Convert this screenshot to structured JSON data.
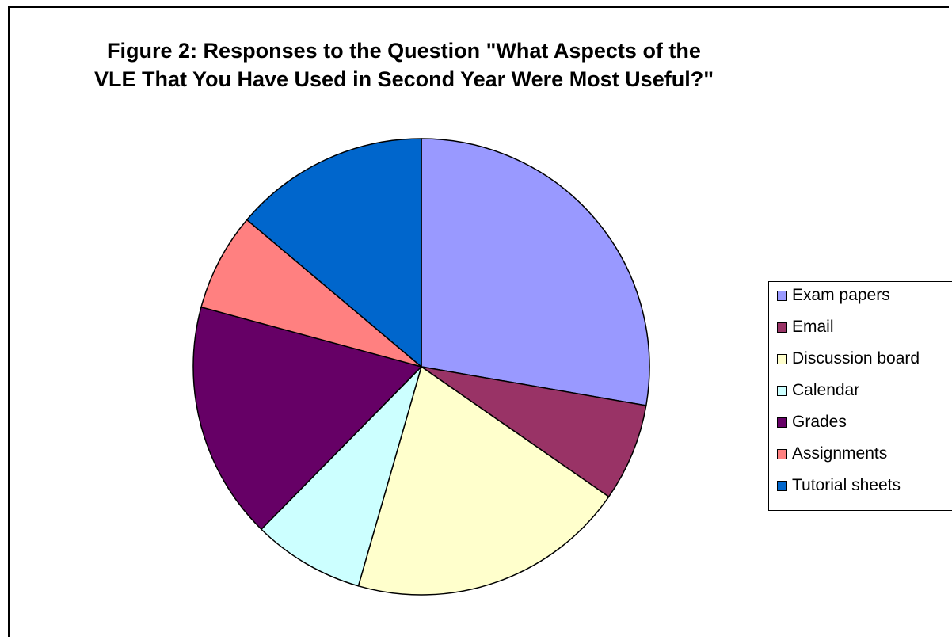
{
  "chart_data": {
    "type": "pie",
    "title_line1": "Figure 2:  Responses to the Question \"What Aspects of the",
    "title_line2": "VLE That You Have Used in Second Year Were Most Useful?\"",
    "categories": [
      "Exam papers",
      "Email",
      "Discussion board",
      "Calendar",
      "Grades",
      "Assignments",
      "Tutorial sheets"
    ],
    "values": [
      28,
      7,
      20,
      8,
      17,
      7,
      14
    ],
    "colors": [
      "#9999FF",
      "#993366",
      "#FFFFCC",
      "#CCFFFF",
      "#660066",
      "#FF8080",
      "#0066CC"
    ],
    "legend_position": "right"
  }
}
